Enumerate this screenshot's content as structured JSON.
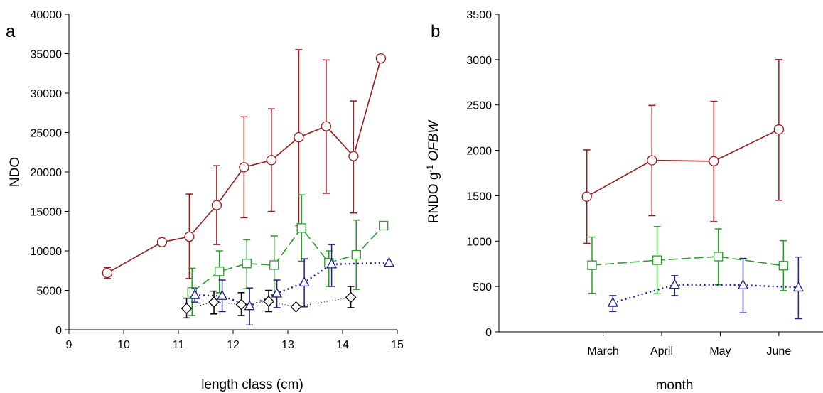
{
  "colors": {
    "red": "#9b1c1c",
    "green": "#2e9b2e",
    "blue": "#1f1f8f",
    "black": "#000000"
  },
  "chart_data": [
    {
      "panel": "a",
      "type": "scatter",
      "xlabel": "length class (cm)",
      "ylabel": "NDO",
      "xlim": [
        9,
        15
      ],
      "ylim": [
        0,
        40000
      ],
      "xticks": [
        "9",
        "10",
        "11",
        "12",
        "13",
        "14",
        "15"
      ],
      "yticks": [
        "0",
        "5000",
        "10000",
        "15000",
        "20000",
        "25000",
        "30000",
        "35000",
        "40000"
      ],
      "series": [
        {
          "marker": "circle",
          "line": "solid",
          "color": "red",
          "points": [
            {
              "x": 9.7,
              "y": 7200,
              "lo": 6500,
              "hi": 7900
            },
            {
              "x": 10.7,
              "y": 11100
            },
            {
              "x": 11.2,
              "y": 11800,
              "lo": 6500,
              "hi": 17200
            },
            {
              "x": 11.7,
              "y": 15800,
              "lo": 10800,
              "hi": 20800
            },
            {
              "x": 12.2,
              "y": 20600,
              "lo": 14200,
              "hi": 27000
            },
            {
              "x": 12.7,
              "y": 21500,
              "lo": 15000,
              "hi": 28000
            },
            {
              "x": 13.2,
              "y": 24400,
              "lo": 13200,
              "hi": 35500
            },
            {
              "x": 13.7,
              "y": 25800,
              "lo": 17300,
              "hi": 34200
            },
            {
              "x": 14.2,
              "y": 22000,
              "lo": 14800,
              "hi": 29000
            },
            {
              "x": 14.7,
              "y": 34400
            }
          ]
        },
        {
          "marker": "square",
          "line": "dashed",
          "color": "green",
          "points": [
            {
              "x": 11.25,
              "y": 4800,
              "lo": 1800,
              "hi": 7800
            },
            {
              "x": 11.75,
              "y": 7400,
              "lo": 4700,
              "hi": 10000
            },
            {
              "x": 12.25,
              "y": 8400,
              "lo": 5200,
              "hi": 11400
            },
            {
              "x": 12.75,
              "y": 8200,
              "lo": 4500,
              "hi": 11900
            },
            {
              "x": 13.25,
              "y": 12900,
              "lo": 8700,
              "hi": 17100
            },
            {
              "x": 13.75,
              "y": 8500,
              "lo": 5500,
              "hi": 10000
            },
            {
              "x": 14.25,
              "y": 9500,
              "lo": 5100,
              "hi": 13900
            },
            {
              "x": 14.75,
              "y": 13200
            }
          ]
        },
        {
          "marker": "triangle",
          "line": "dotted",
          "color": "blue",
          "points": [
            {
              "x": 11.3,
              "y": 4400,
              "lo": 3500,
              "hi": 5200
            },
            {
              "x": 11.8,
              "y": 4300,
              "lo": 2300,
              "hi": 6300
            },
            {
              "x": 12.3,
              "y": 3000,
              "lo": 600,
              "hi": 5300
            },
            {
              "x": 12.8,
              "y": 4600,
              "lo": 2800,
              "hi": 6300
            },
            {
              "x": 13.3,
              "y": 6000,
              "lo": 2900,
              "hi": 9000
            },
            {
              "x": 13.8,
              "y": 8300,
              "lo": 5500,
              "hi": 10800
            },
            {
              "x": 14.85,
              "y": 8500
            }
          ]
        },
        {
          "marker": "diamond",
          "line": "thin-dotted",
          "color": "black",
          "points": [
            {
              "x": 11.15,
              "y": 2700,
              "lo": 1500,
              "hi": 4000
            },
            {
              "x": 11.65,
              "y": 3500,
              "lo": 2000,
              "hi": 4900
            },
            {
              "x": 12.15,
              "y": 3200,
              "lo": 1800,
              "hi": 4700
            },
            {
              "x": 12.65,
              "y": 3600,
              "lo": 2300,
              "hi": 5000
            },
            {
              "x": 13.15,
              "y": 2900
            },
            {
              "x": 14.15,
              "y": 4100,
              "lo": 2800,
              "hi": 5500
            }
          ]
        }
      ]
    },
    {
      "panel": "b",
      "type": "scatter",
      "xlabel": "month",
      "ylabel": "RNDO g",
      "ylabel_sup": "-1",
      "ylabel_italic": "OFBW",
      "xlim": [
        0,
        5
      ],
      "ylim": [
        0,
        3500
      ],
      "xticks": [
        "March",
        "April",
        "May",
        "June"
      ],
      "xtick_pos": [
        1.6,
        2.5,
        3.4,
        4.3
      ],
      "yticks": [
        "0",
        "500",
        "1000",
        "1500",
        "2000",
        "2500",
        "3000",
        "3500"
      ],
      "series": [
        {
          "marker": "circle",
          "line": "solid",
          "color": "red",
          "points": [
            {
              "x": 1.35,
              "y": 1490,
              "lo": 975,
              "hi": 2005
            },
            {
              "x": 2.35,
              "y": 1890,
              "lo": 1280,
              "hi": 2495
            },
            {
              "x": 3.3,
              "y": 1880,
              "lo": 1215,
              "hi": 2540
            },
            {
              "x": 4.3,
              "y": 2230,
              "lo": 1450,
              "hi": 3000
            }
          ]
        },
        {
          "marker": "square",
          "line": "dashed",
          "color": "green",
          "points": [
            {
              "x": 1.43,
              "y": 735,
              "lo": 425,
              "hi": 1045
            },
            {
              "x": 2.43,
              "y": 790,
              "lo": 420,
              "hi": 1160
            },
            {
              "x": 3.37,
              "y": 830,
              "lo": 520,
              "hi": 1135
            },
            {
              "x": 4.37,
              "y": 730,
              "lo": 455,
              "hi": 1005
            }
          ]
        },
        {
          "marker": "triangle",
          "line": "dotted",
          "color": "blue",
          "points": [
            {
              "x": 1.75,
              "y": 320,
              "lo": 225,
              "hi": 400
            },
            {
              "x": 2.7,
              "y": 520,
              "lo": 400,
              "hi": 620
            },
            {
              "x": 3.75,
              "y": 515,
              "lo": 210,
              "hi": 810
            },
            {
              "x": 4.6,
              "y": 490,
              "lo": 145,
              "hi": 825
            }
          ]
        }
      ]
    }
  ]
}
